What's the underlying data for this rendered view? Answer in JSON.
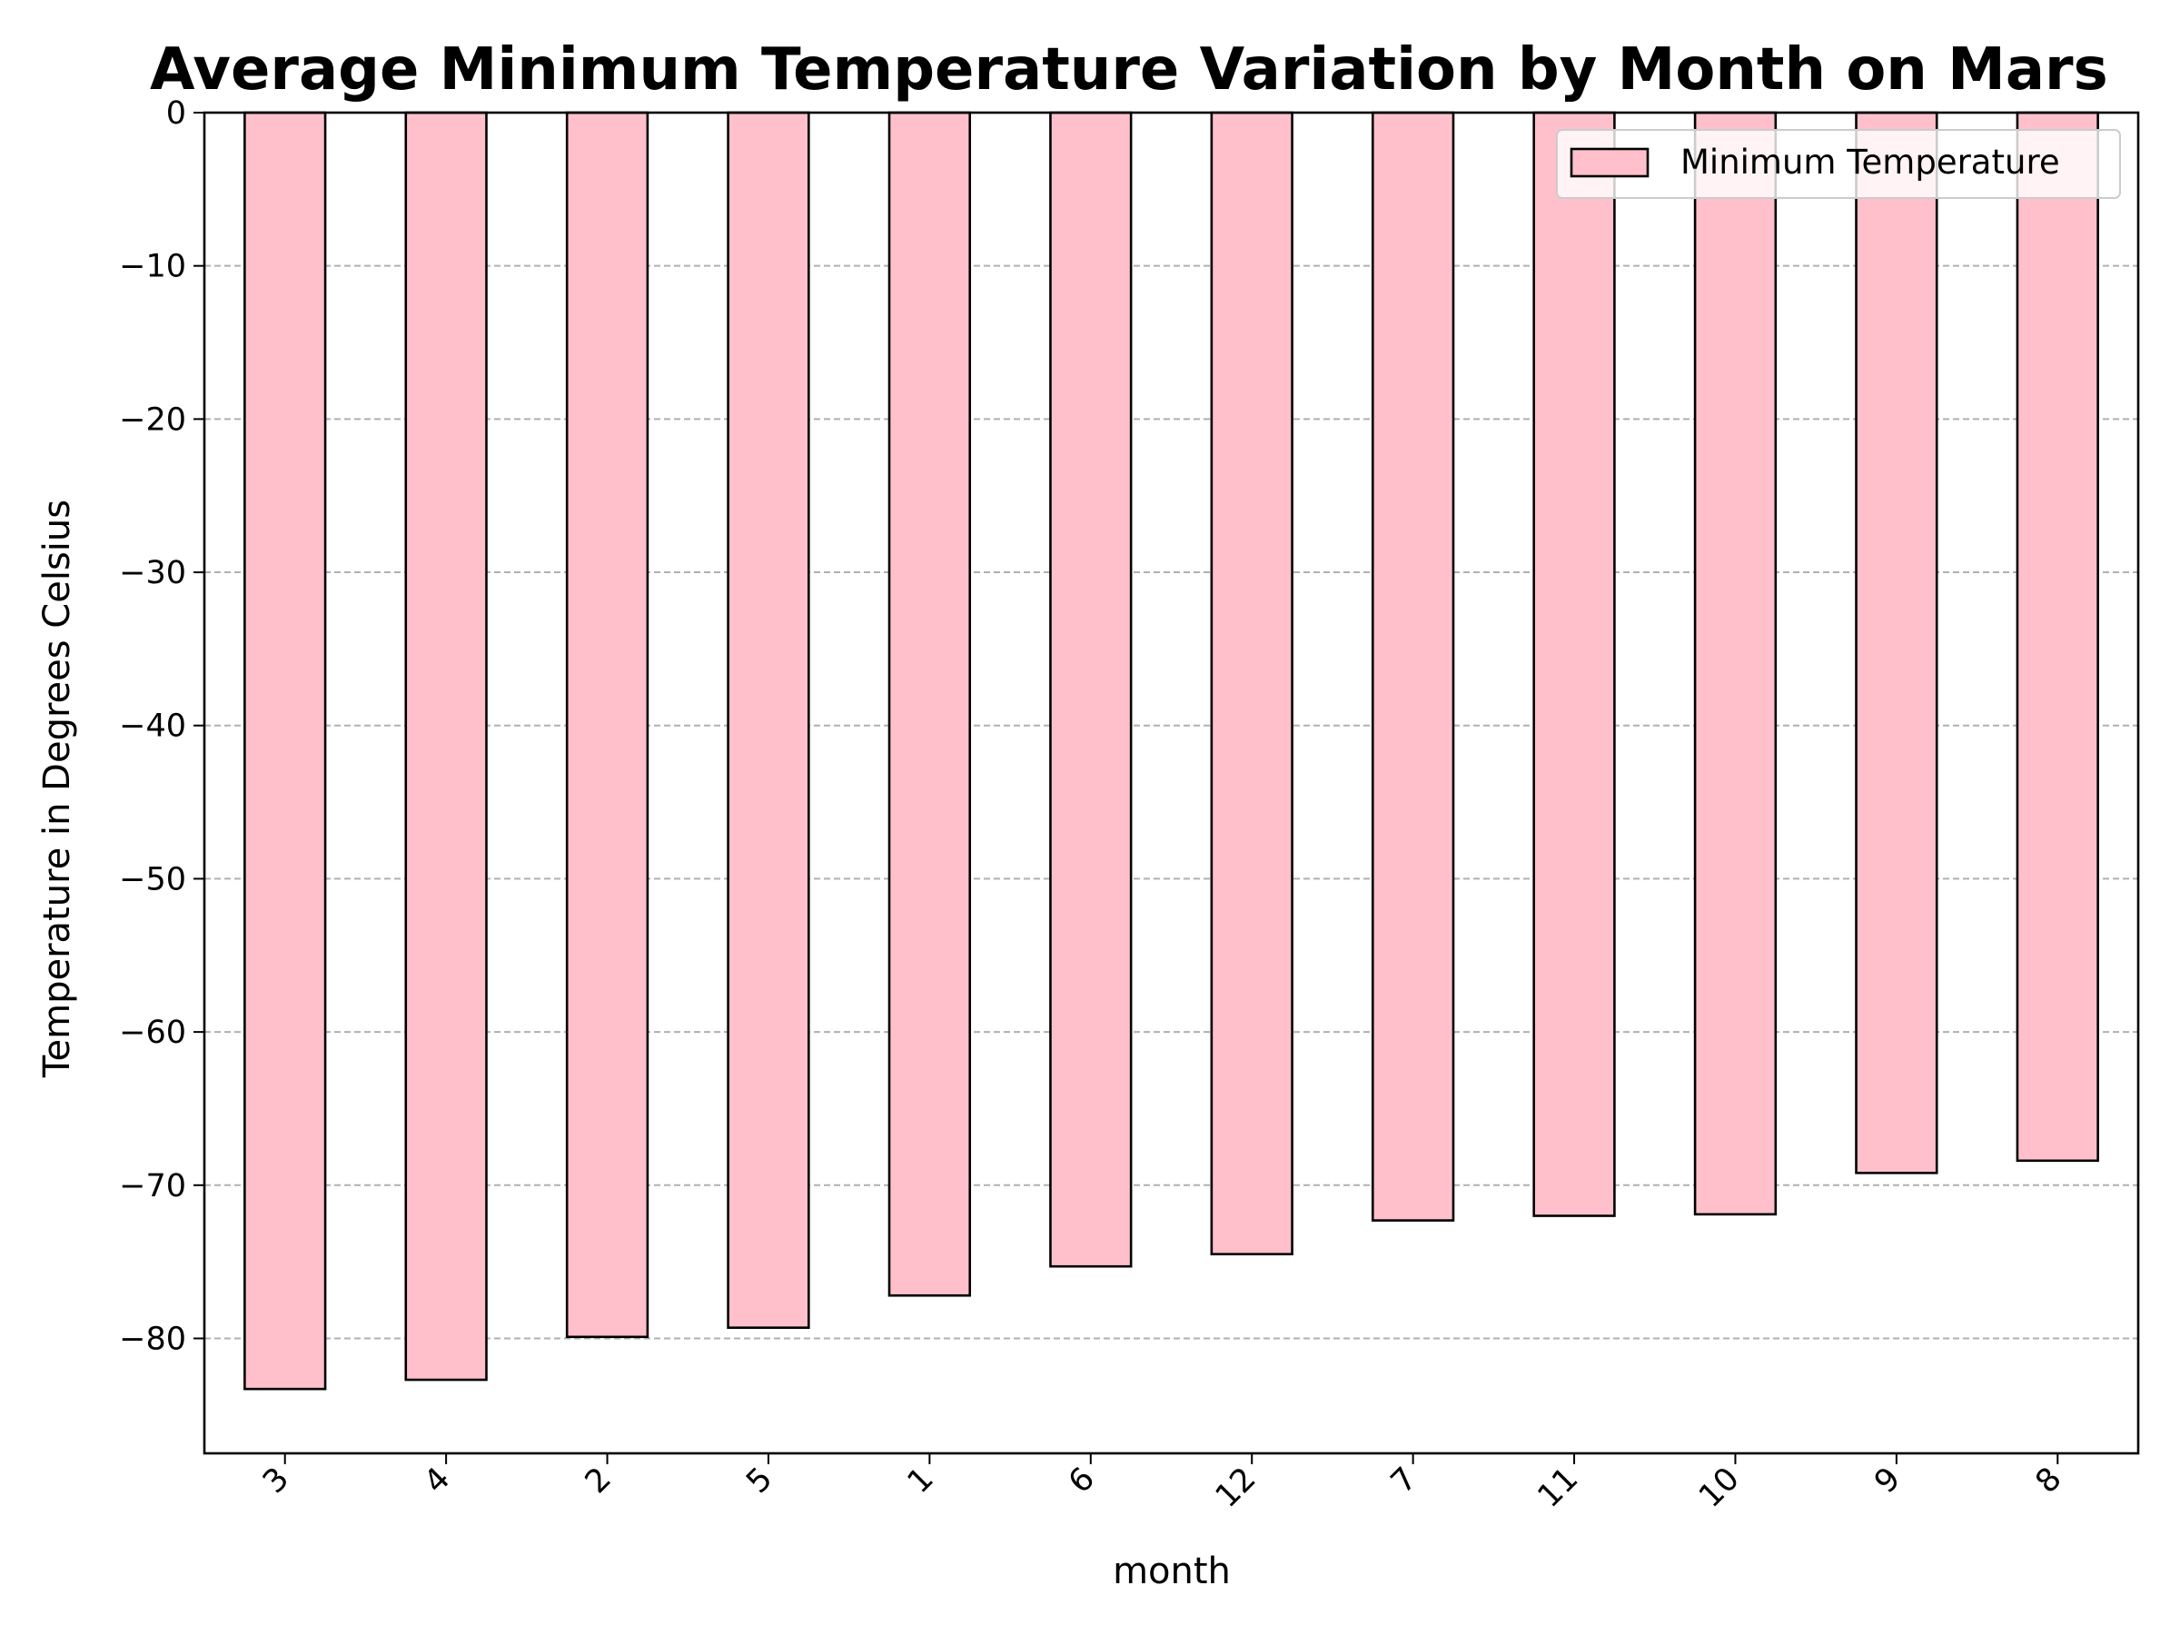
{
  "chart_data": {
    "type": "bar",
    "title": "Average Minimum Temperature Variation by Month on Mars",
    "xlabel": "month",
    "ylabel": "Temperature in Degrees Celsius",
    "categories": [
      "3",
      "4",
      "2",
      "5",
      "1",
      "6",
      "12",
      "7",
      "11",
      "10",
      "9",
      "8"
    ],
    "series": [
      {
        "name": "Minimum Temperature",
        "values": [
          -83.3,
          -82.7,
          -79.9,
          -79.3,
          -77.2,
          -75.3,
          -74.5,
          -72.3,
          -72.0,
          -71.9,
          -69.2,
          -68.4
        ],
        "color": "#ffc0cb",
        "edge_color": "#000000"
      }
    ],
    "ylim": [
      -87.5,
      0
    ],
    "yticks": [
      0,
      -10,
      -20,
      -30,
      -40,
      -50,
      -60,
      -70,
      -80
    ],
    "ytick_labels": [
      "0",
      "−10",
      "−20",
      "−30",
      "−40",
      "−50",
      "−60",
      "−70",
      "−80"
    ],
    "grid": "y-dashed",
    "grid_color": "#b0b0b0",
    "legend_position": "top-right",
    "xtick_rotation": "45"
  }
}
